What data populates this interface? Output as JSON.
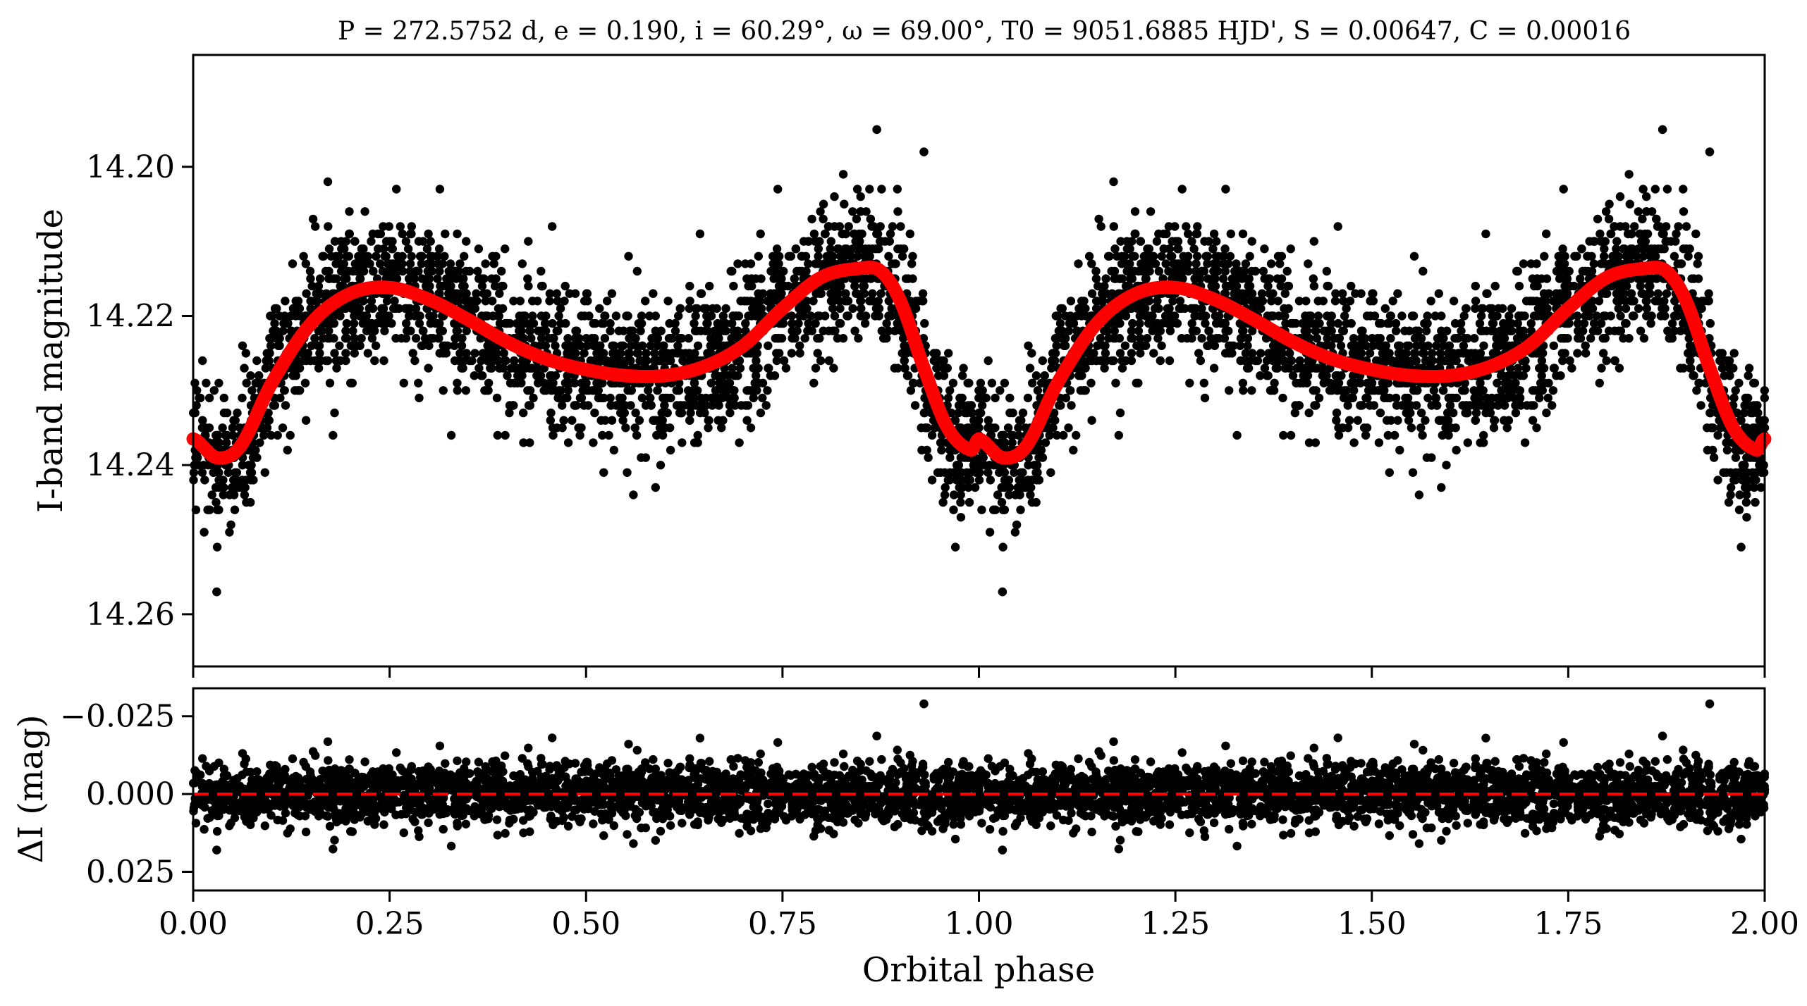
{
  "chart_data": [
    {
      "panel": "top",
      "type": "scatter",
      "title": "P = 272.5752 d, e = 0.190, i = 60.29°, ω = 69.00°, T0 = 9051.6885 HJD', S = 0.00647, C = 0.00016",
      "xlabel": "",
      "ylabel": "I-band magnitude",
      "xlim": [
        0.0,
        2.0
      ],
      "ylim": [
        14.267,
        14.185
      ],
      "y_inverted": true,
      "yticks": [
        "14.20",
        "14.22",
        "14.24",
        "14.26"
      ],
      "ytick_values": [
        14.2,
        14.22,
        14.24,
        14.26
      ],
      "observations": {
        "name": "",
        "color": "#000000",
        "count_per_cycle": 2300,
        "scatter_sigma_mag": 0.0048,
        "note_outliers": [
          {
            "x": 0.03,
            "y": 14.257
          },
          {
            "x": 1.03,
            "y": 14.257
          },
          {
            "x": 0.87,
            "y": 14.195
          },
          {
            "x": 1.87,
            "y": 14.195
          },
          {
            "x": 0.93,
            "y": 14.198
          },
          {
            "x": 1.93,
            "y": 14.198
          }
        ]
      },
      "model": {
        "name": "",
        "color": "#ff0000",
        "x": [
          0.0,
          0.03,
          0.06,
          0.1,
          0.15,
          0.2,
          0.25,
          0.3,
          0.35,
          0.4,
          0.45,
          0.5,
          0.55,
          0.6,
          0.65,
          0.7,
          0.75,
          0.8,
          0.85,
          0.875,
          0.9,
          0.93,
          0.96,
          0.99,
          1.0
        ],
        "y": [
          14.2365,
          14.239,
          14.2375,
          14.229,
          14.221,
          14.217,
          14.2162,
          14.2178,
          14.2205,
          14.2235,
          14.2258,
          14.2272,
          14.228,
          14.228,
          14.2268,
          14.224,
          14.219,
          14.2148,
          14.2136,
          14.214,
          14.218,
          14.227,
          14.235,
          14.238,
          14.2365
        ]
      }
    },
    {
      "panel": "bottom",
      "type": "scatter",
      "xlabel": "Orbital phase",
      "ylabel": "ΔI (mag)",
      "xlim": [
        0.0,
        2.0
      ],
      "ylim": [
        0.031,
        -0.034
      ],
      "y_inverted": true,
      "yticks": [
        "−0.025",
        "0.000",
        "0.025"
      ],
      "ytick_values": [
        -0.025,
        0.0,
        0.025
      ],
      "xticks": [
        "0.00",
        "0.25",
        "0.50",
        "0.75",
        "1.00",
        "1.25",
        "1.50",
        "1.75",
        "2.00"
      ],
      "xtick_values": [
        0.0,
        0.25,
        0.5,
        0.75,
        1.0,
        1.25,
        1.5,
        1.75,
        2.0
      ],
      "residuals": {
        "name": "",
        "color": "#000000",
        "scatter_sigma_mag": 0.0048
      },
      "zero_line": {
        "y": 0.0,
        "color": "#ff0000",
        "style": "dashed"
      }
    }
  ]
}
